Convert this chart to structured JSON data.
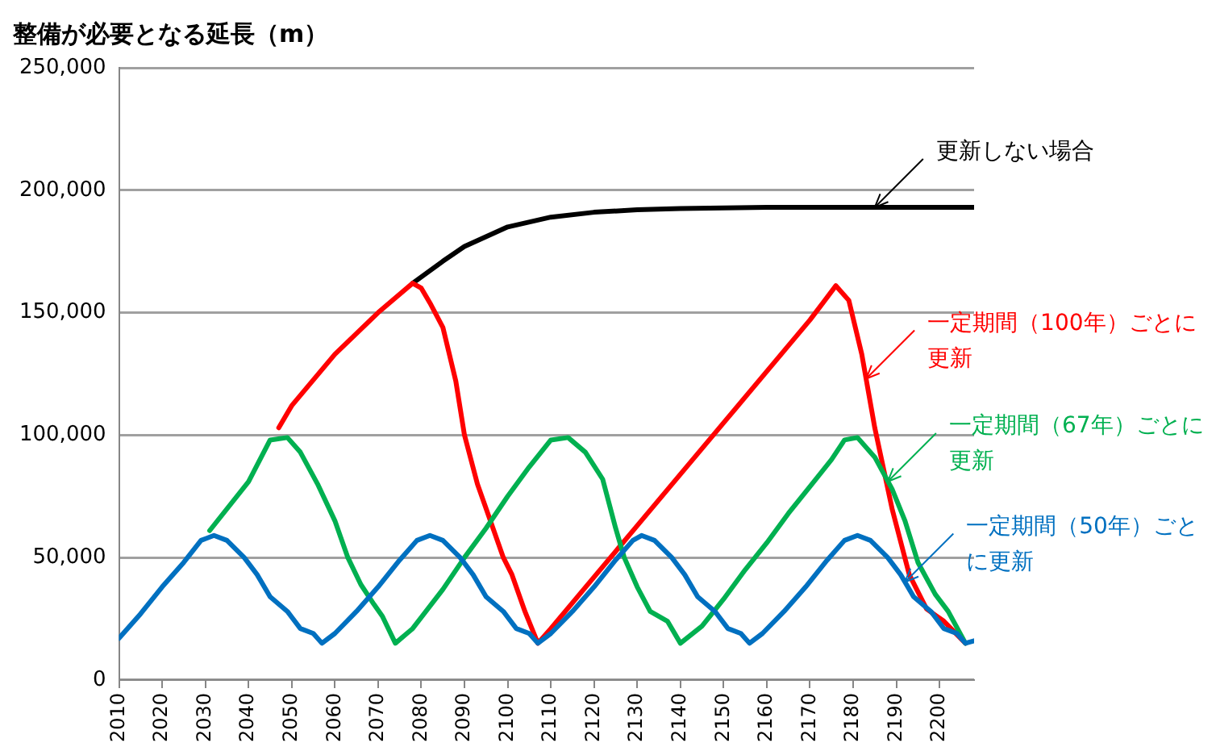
{
  "chart_data": {
    "type": "line",
    "ylabel": "整備が必要となる延長（m）",
    "xlim": [
      2010,
      2208
    ],
    "xticks": [
      2010,
      2020,
      2030,
      2040,
      2050,
      2060,
      2070,
      2080,
      2090,
      2100,
      2110,
      2120,
      2130,
      2140,
      2150,
      2160,
      2170,
      2180,
      2190,
      2200
    ],
    "ylim": [
      0,
      250000
    ],
    "yticks": [
      0,
      {
        "value": 50000,
        "label": "50,000"
      },
      {
        "value": 100000,
        "label": "100,000"
      },
      {
        "value": 150000,
        "label": "150,000"
      },
      {
        "value": 200000,
        "label": "200,000"
      },
      {
        "value": 250000,
        "label": "250,000"
      }
    ],
    "grid": "y",
    "legend": false,
    "marker": "none",
    "line_style": "solid",
    "series": [
      {
        "color": "#000000",
        "x": [
          2078,
          2085,
          2090,
          2100,
          2110,
          2120,
          2130,
          2140,
          2160,
          2180,
          2208
        ],
        "values": [
          162000,
          171000,
          177000,
          185000,
          189000,
          191000,
          192000,
          192500,
          193000,
          193000,
          193000
        ]
      },
      {
        "color": "#ff0000",
        "x": [
          2047,
          2050,
          2060,
          2070,
          2078,
          2080,
          2082,
          2085,
          2088,
          2090,
          2093,
          2096,
          2099,
          2101,
          2104,
          2107,
          2110,
          2120,
          2130,
          2140,
          2150,
          2160,
          2170,
          2176,
          2179,
          2182,
          2185,
          2189,
          2193,
          2197,
          2201,
          2206
        ],
        "values": [
          103000,
          112000,
          133000,
          150000,
          162000,
          160000,
          154000,
          144000,
          122000,
          100000,
          80000,
          65000,
          50000,
          43000,
          28000,
          15000,
          21000,
          42000,
          63000,
          84000,
          105000,
          126000,
          147000,
          161000,
          155000,
          133000,
          103000,
          70000,
          43000,
          29000,
          24000,
          15000
        ]
      },
      {
        "color": "#00b050",
        "x": [
          2031,
          2040,
          2045,
          2049,
          2052,
          2056,
          2060,
          2063,
          2066,
          2069,
          2071,
          2074,
          2078,
          2085,
          2090,
          2095,
          2100,
          2105,
          2110,
          2114,
          2118,
          2122,
          2125,
          2127,
          2130,
          2133,
          2137,
          2140,
          2145,
          2150,
          2155,
          2160,
          2165,
          2170,
          2175,
          2178,
          2181,
          2185,
          2189,
          2192,
          2195,
          2199,
          2202,
          2206
        ],
        "values": [
          61000,
          81000,
          98000,
          99000,
          93000,
          80000,
          65000,
          50000,
          39000,
          31000,
          26000,
          15000,
          21000,
          37000,
          50000,
          62000,
          75000,
          87000,
          98000,
          99000,
          93000,
          82000,
          62000,
          50000,
          38000,
          28000,
          24000,
          15000,
          22000,
          33000,
          45000,
          56000,
          68000,
          79000,
          90000,
          98000,
          99000,
          91000,
          78000,
          65000,
          48000,
          35000,
          28000,
          15000
        ]
      },
      {
        "color": "#0070c0",
        "x": [
          2010,
          2015,
          2020,
          2025,
          2029,
          2032,
          2035,
          2039,
          2042,
          2045,
          2049,
          2052,
          2055,
          2057,
          2060,
          2065,
          2070,
          2075,
          2079,
          2082,
          2085,
          2089,
          2092,
          2095,
          2099,
          2102,
          2105,
          2107,
          2110,
          2115,
          2120,
          2125,
          2129,
          2131,
          2134,
          2138,
          2141,
          2144,
          2148,
          2151,
          2154,
          2156,
          2159,
          2164,
          2169,
          2174,
          2178,
          2181,
          2184,
          2188,
          2191,
          2194,
          2198,
          2201,
          2204,
          2206,
          2208
        ],
        "values": [
          17000,
          27000,
          38000,
          48000,
          57000,
          59000,
          57000,
          50000,
          43000,
          34000,
          28000,
          21000,
          19000,
          15000,
          19000,
          28000,
          38000,
          49000,
          57000,
          59000,
          57000,
          50000,
          43000,
          34000,
          28000,
          21000,
          19000,
          15000,
          19000,
          28000,
          38000,
          49000,
          57000,
          59000,
          57000,
          50000,
          43000,
          34000,
          28000,
          21000,
          19000,
          15000,
          19000,
          28000,
          38000,
          49000,
          57000,
          59000,
          57000,
          50000,
          43000,
          34000,
          28000,
          21000,
          19000,
          15000,
          16000
        ]
      }
    ],
    "annotations": [
      {
        "text": "更新しない場合",
        "x": 2185,
        "y": 193000
      },
      {
        "text": "一定期間（100年）ごとに更新",
        "x": 2183,
        "y": 123000
      },
      {
        "text": "一定期間（67年）ごとに更新",
        "x": 2188,
        "y": 81000
      },
      {
        "text": "一定期間（50年）ごとに更新",
        "x": 2192,
        "y": 40000
      }
    ]
  }
}
